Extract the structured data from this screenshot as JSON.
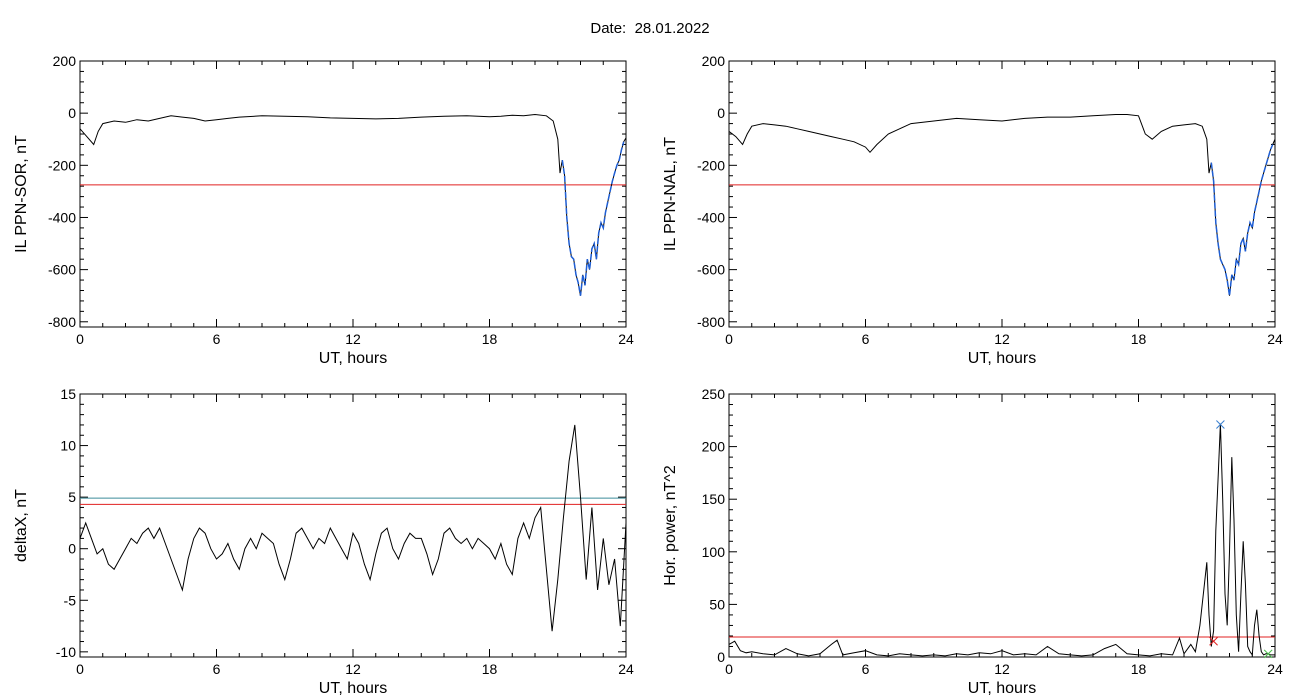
{
  "header": {
    "date_label": "Date:",
    "date_value": "28.01.2022"
  },
  "colors": {
    "trace": "#000000",
    "highlight": "#1f5fd6",
    "threshold_red": "#e02020",
    "threshold_teal": "#3c8c9a",
    "marker_blue": "#3a7fd0",
    "marker_red": "#e02020",
    "marker_green": "#4cbf4c"
  },
  "chart_data": [
    {
      "type": "line",
      "panel": "top-left",
      "title": "",
      "xlabel": "UT, hours",
      "ylabel": "IL PPN-SOR, nT",
      "xlim": [
        0,
        24
      ],
      "ylim": [
        -820,
        200
      ],
      "xticks": [
        0,
        6,
        12,
        18,
        24
      ],
      "yticks": [
        -800,
        -600,
        -400,
        -200,
        0,
        200
      ],
      "threshold": {
        "y": -275,
        "color": "red"
      },
      "highlight": {
        "from_x": 21.2,
        "to_x": 23.9,
        "color": "blue"
      },
      "series": [
        {
          "x": [
            0,
            0.3,
            0.6,
            0.8,
            1.0,
            1.5,
            2,
            2.5,
            3,
            3.5,
            4,
            4.5,
            5,
            5.5,
            6,
            6.5,
            7,
            8,
            9,
            10,
            11,
            12,
            13,
            14,
            15,
            16,
            17,
            18,
            18.5,
            19,
            19.5,
            20,
            20.5,
            20.8,
            21.0,
            21.1,
            21.2,
            21.3,
            21.4,
            21.5,
            21.6,
            21.7,
            21.8,
            21.9,
            22.0,
            22.1,
            22.2,
            22.3,
            22.4,
            22.5,
            22.6,
            22.7,
            22.8,
            22.9,
            23.0,
            23.1,
            23.2,
            23.3,
            23.4,
            23.5,
            23.6,
            23.7,
            23.8,
            23.9,
            24
          ],
          "y": [
            -60,
            -90,
            -120,
            -70,
            -40,
            -30,
            -35,
            -25,
            -30,
            -20,
            -10,
            -15,
            -20,
            -30,
            -25,
            -20,
            -15,
            -10,
            -12,
            -14,
            -18,
            -20,
            -22,
            -20,
            -15,
            -12,
            -10,
            -14,
            -12,
            -8,
            -10,
            -5,
            -10,
            -30,
            -100,
            -230,
            -180,
            -240,
            -400,
            -500,
            -550,
            -560,
            -620,
            -650,
            -700,
            -620,
            -660,
            -560,
            -600,
            -520,
            -500,
            -560,
            -460,
            -420,
            -440,
            -380,
            -340,
            -300,
            -260,
            -230,
            -200,
            -180,
            -140,
            -110,
            -95
          ]
        }
      ]
    },
    {
      "type": "line",
      "panel": "top-right",
      "title": "",
      "xlabel": "UT, hours",
      "ylabel": "IL PPN-NAL, nT",
      "xlim": [
        0,
        24
      ],
      "ylim": [
        -820,
        200
      ],
      "xticks": [
        0,
        6,
        12,
        18,
        24
      ],
      "yticks": [
        -800,
        -600,
        -400,
        -200,
        0,
        200
      ],
      "threshold": {
        "y": -275,
        "color": "red"
      },
      "highlight": {
        "from_x": 21.2,
        "to_x": 23.9,
        "color": "blue"
      },
      "series": [
        {
          "x": [
            0,
            0.3,
            0.6,
            0.8,
            1.0,
            1.5,
            2,
            2.5,
            3,
            3.5,
            4,
            4.5,
            5,
            5.5,
            6.0,
            6.2,
            6.5,
            7,
            7.5,
            8,
            9,
            10,
            11,
            12,
            13,
            14,
            15,
            16,
            17,
            17.5,
            18,
            18.3,
            18.6,
            19,
            19.5,
            20,
            20.5,
            20.8,
            21.0,
            21.1,
            21.2,
            21.3,
            21.4,
            21.5,
            21.6,
            21.7,
            21.8,
            21.9,
            22.0,
            22.1,
            22.2,
            22.3,
            22.4,
            22.5,
            22.6,
            22.7,
            22.8,
            22.9,
            23.0,
            23.1,
            23.2,
            23.3,
            23.4,
            23.5,
            23.6,
            23.7,
            23.8,
            23.9,
            24
          ],
          "y": [
            -70,
            -90,
            -120,
            -80,
            -50,
            -40,
            -45,
            -50,
            -60,
            -70,
            -80,
            -90,
            -100,
            -110,
            -130,
            -150,
            -120,
            -80,
            -60,
            -40,
            -30,
            -20,
            -25,
            -30,
            -20,
            -15,
            -15,
            -10,
            -5,
            -5,
            -10,
            -80,
            -100,
            -70,
            -50,
            -45,
            -40,
            -50,
            -100,
            -230,
            -190,
            -260,
            -420,
            -500,
            -560,
            -580,
            -600,
            -640,
            -700,
            -620,
            -640,
            -560,
            -580,
            -500,
            -480,
            -530,
            -460,
            -420,
            -440,
            -380,
            -340,
            -300,
            -260,
            -230,
            -200,
            -170,
            -140,
            -120,
            -100
          ]
        }
      ]
    },
    {
      "type": "line",
      "panel": "bottom-left",
      "title": "",
      "xlabel": "UT, hours",
      "ylabel": "deltaX, nT",
      "xlim": [
        0,
        24
      ],
      "ylim": [
        -10.5,
        15
      ],
      "xticks": [
        0,
        6,
        12,
        18,
        24
      ],
      "yticks": [
        -10,
        -5,
        0,
        5,
        10,
        15
      ],
      "thresholds": [
        {
          "y": 4.9,
          "color": "teal"
        },
        {
          "y": 4.3,
          "color": "red"
        }
      ],
      "series": [
        {
          "x": [
            0,
            0.25,
            0.5,
            0.75,
            1.0,
            1.25,
            1.5,
            1.75,
            2.0,
            2.25,
            2.5,
            2.75,
            3.0,
            3.25,
            3.5,
            3.75,
            4.0,
            4.25,
            4.5,
            4.75,
            5.0,
            5.25,
            5.5,
            5.75,
            6.0,
            6.25,
            6.5,
            6.75,
            7.0,
            7.25,
            7.5,
            7.75,
            8.0,
            8.25,
            8.5,
            8.75,
            9.0,
            9.25,
            9.5,
            9.75,
            10.0,
            10.25,
            10.5,
            10.75,
            11.0,
            11.25,
            11.5,
            11.75,
            12.0,
            12.25,
            12.5,
            12.75,
            13.0,
            13.25,
            13.5,
            13.75,
            14.0,
            14.25,
            14.5,
            14.75,
            15.0,
            15.25,
            15.5,
            15.75,
            16.0,
            16.25,
            16.5,
            16.75,
            17.0,
            17.25,
            17.5,
            17.75,
            18.0,
            18.25,
            18.5,
            18.75,
            19.0,
            19.25,
            19.5,
            19.75,
            20.0,
            20.25,
            20.5,
            20.75,
            21.0,
            21.25,
            21.5,
            21.75,
            22.0,
            22.25,
            22.5,
            22.75,
            23.0,
            23.25,
            23.5,
            23.75,
            24.0
          ],
          "y": [
            1.0,
            2.5,
            1.0,
            -0.5,
            0.0,
            -1.5,
            -2.0,
            -1.0,
            0.0,
            1.0,
            0.5,
            1.5,
            2.0,
            1.0,
            2.0,
            0.5,
            -1.0,
            -2.5,
            -4.0,
            -1.0,
            1.0,
            2.0,
            1.5,
            0.0,
            -1.0,
            -0.5,
            0.5,
            -1.0,
            -2.0,
            0.0,
            1.0,
            0.0,
            1.5,
            1.0,
            0.5,
            -1.5,
            -3.0,
            -1.0,
            1.5,
            2.0,
            1.0,
            0.0,
            1.0,
            0.5,
            2.0,
            1.0,
            0.0,
            -1.0,
            1.5,
            0.5,
            -1.5,
            -3.0,
            -0.5,
            1.5,
            2.0,
            0.0,
            -1.0,
            0.5,
            1.5,
            1.0,
            1.0,
            -0.5,
            -2.5,
            -1.0,
            1.5,
            2.0,
            1.0,
            0.5,
            1.0,
            0.0,
            1.0,
            0.5,
            0.0,
            -1.0,
            0.5,
            -1.5,
            -2.5,
            1.0,
            2.5,
            1.0,
            3.0,
            4.0,
            -2.0,
            -8.0,
            -3.0,
            3.0,
            8.5,
            12.0,
            5.0,
            -3.0,
            4.0,
            -4.0,
            1.0,
            -3.5,
            -1.0,
            -7.5,
            2.5
          ]
        }
      ]
    },
    {
      "type": "line",
      "panel": "bottom-right",
      "title": "",
      "xlabel": "UT, hours",
      "ylabel": "Hor. power, nT^2",
      "xlim": [
        0,
        24
      ],
      "ylim": [
        0,
        250
      ],
      "xticks": [
        0,
        6,
        12,
        18,
        24
      ],
      "yticks": [
        0,
        50,
        100,
        150,
        200,
        250
      ],
      "threshold": {
        "y": 19,
        "color": "red"
      },
      "markers": [
        {
          "x": 21.6,
          "y": 221,
          "symbol": "x",
          "color": "blue"
        },
        {
          "x": 21.3,
          "y": 15,
          "symbol": "x",
          "color": "red"
        },
        {
          "x": 23.7,
          "y": 3,
          "symbol": "x",
          "color": "green"
        }
      ],
      "series": [
        {
          "x": [
            0,
            0.25,
            0.5,
            0.75,
            1.0,
            1.5,
            2.0,
            2.5,
            3.0,
            3.5,
            4.0,
            4.5,
            4.75,
            5.0,
            5.5,
            6.0,
            6.5,
            7.0,
            7.5,
            8.0,
            8.5,
            9.0,
            9.5,
            10.0,
            10.5,
            11.0,
            11.5,
            12.0,
            12.5,
            13.0,
            13.5,
            14.0,
            14.5,
            15.0,
            15.5,
            16.0,
            16.5,
            17.0,
            17.5,
            18.0,
            18.5,
            19.0,
            19.5,
            19.8,
            20.0,
            20.3,
            20.5,
            20.7,
            20.9,
            21.0,
            21.1,
            21.2,
            21.3,
            21.4,
            21.5,
            21.6,
            21.7,
            21.8,
            21.9,
            22.0,
            22.1,
            22.2,
            22.3,
            22.4,
            22.5,
            22.6,
            22.7,
            22.8,
            22.9,
            23.0,
            23.1,
            23.2,
            23.3,
            23.4,
            23.5,
            23.6,
            23.7,
            23.8,
            24.0
          ],
          "y": [
            12,
            15,
            6,
            4,
            5,
            3,
            2,
            8,
            3,
            1,
            3,
            12,
            16,
            2,
            4,
            6,
            2,
            1,
            3,
            2,
            1,
            2,
            1,
            3,
            2,
            4,
            3,
            6,
            2,
            3,
            2,
            10,
            3,
            2,
            1,
            2,
            8,
            12,
            3,
            2,
            1,
            3,
            2,
            18,
            3,
            12,
            5,
            30,
            70,
            90,
            40,
            10,
            25,
            120,
            170,
            222,
            150,
            60,
            30,
            100,
            190,
            130,
            40,
            5,
            60,
            110,
            70,
            10,
            5,
            2,
            30,
            45,
            20,
            5,
            2,
            3,
            3,
            2,
            2
          ]
        }
      ]
    }
  ]
}
